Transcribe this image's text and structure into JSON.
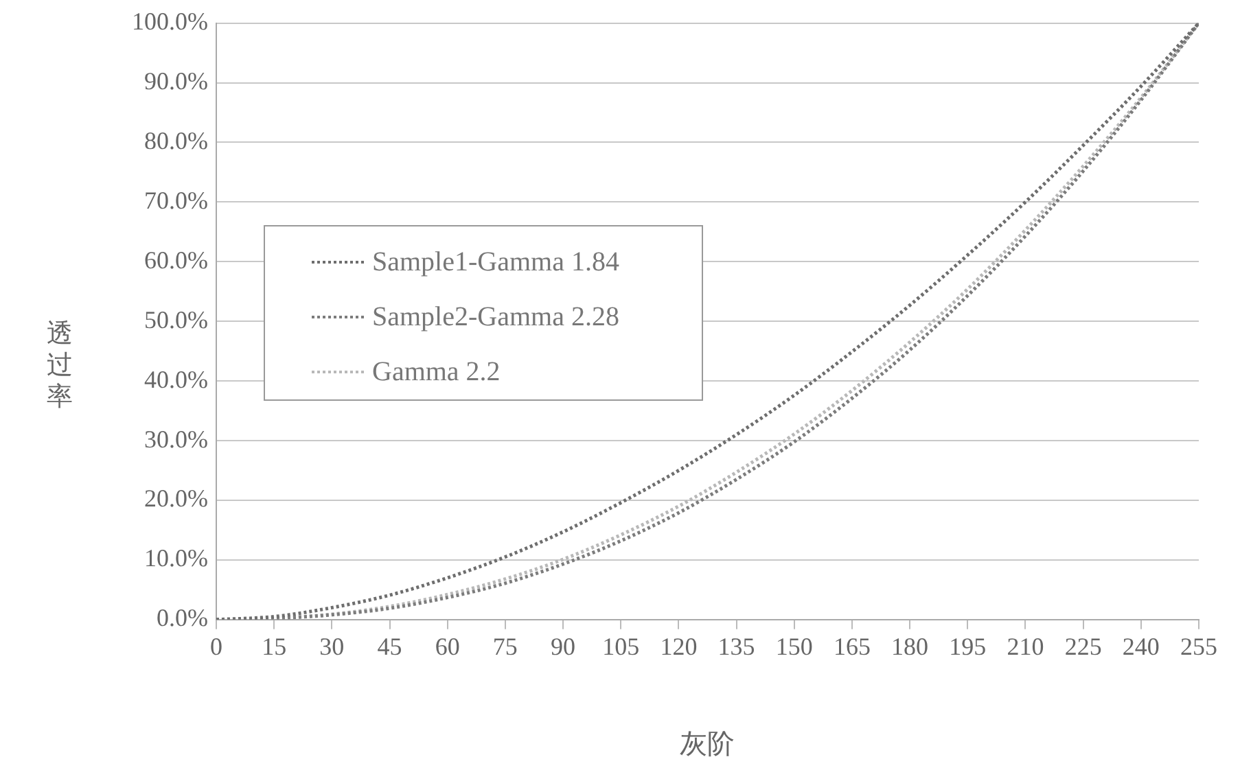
{
  "chart_data": {
    "type": "line",
    "xlabel": "灰阶",
    "ylabel": "透过率",
    "x": [
      0,
      15,
      30,
      45,
      60,
      75,
      90,
      105,
      120,
      135,
      150,
      165,
      180,
      195,
      210,
      225,
      240,
      255
    ],
    "xlim": [
      0,
      255
    ],
    "xticks": [
      0,
      15,
      30,
      45,
      60,
      75,
      90,
      105,
      120,
      135,
      150,
      165,
      180,
      195,
      210,
      225,
      240,
      255
    ],
    "ylim": [
      0,
      100
    ],
    "yticks": [
      {
        "value": 0,
        "label": "0.0%"
      },
      {
        "value": 10,
        "label": "10.0%"
      },
      {
        "value": 20,
        "label": "20.0%"
      },
      {
        "value": 30,
        "label": "30.0%"
      },
      {
        "value": 40,
        "label": "40.0%"
      },
      {
        "value": 50,
        "label": "50.0%"
      },
      {
        "value": 60,
        "label": "60.0%"
      },
      {
        "value": 70,
        "label": "70.0%"
      },
      {
        "value": 80,
        "label": "80.0%"
      },
      {
        "value": 90,
        "label": "90.0%"
      },
      {
        "value": 100,
        "label": "100.0%"
      }
    ],
    "series": [
      {
        "name": "Sample1-Gamma 1.84",
        "color": "#6e6e6e",
        "values": [
          0,
          0.5,
          2,
          4.1,
          7,
          10.5,
          14.7,
          19.6,
          25,
          31,
          37.6,
          44.9,
          52.7,
          61.1,
          70,
          79.5,
          89.4,
          100
        ]
      },
      {
        "name": "Sample2-Gamma 2.28",
        "color": "#7c7c7c",
        "values": [
          0,
          0.2,
          0.8,
          1.9,
          3.7,
          6.1,
          9.3,
          13.2,
          17.9,
          23.5,
          29.8,
          37.1,
          45.2,
          54.3,
          64.3,
          75.2,
          87.1,
          100
        ]
      },
      {
        "name": "Gamma 2.2",
        "color": "#b8b8b8",
        "values": [
          0,
          0.2,
          0.9,
          2.2,
          4.2,
          6.8,
          10.1,
          14.2,
          19,
          24.7,
          31.1,
          38.4,
          46.5,
          55.4,
          65.3,
          76,
          87.5,
          100
        ]
      }
    ],
    "grid": "y",
    "legend": "left",
    "marker": "none",
    "line_style": "dotted"
  }
}
